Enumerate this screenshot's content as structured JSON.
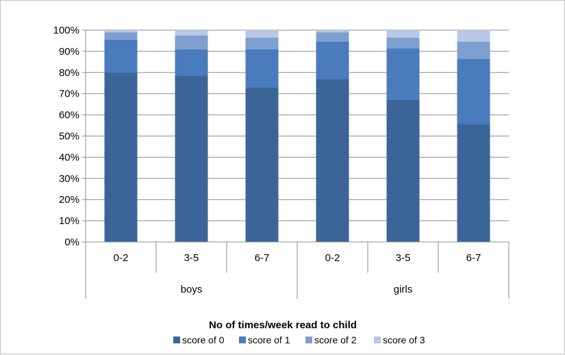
{
  "chart_data": {
    "type": "bar",
    "stacked": true,
    "percent": true,
    "groups": [
      {
        "label": "boys",
        "categories": [
          "0-2",
          "3-5",
          "6-7"
        ]
      },
      {
        "label": "girls",
        "categories": [
          "0-2",
          "3-5",
          "6-7"
        ]
      }
    ],
    "categories": [
      "0-2",
      "3-5",
      "6-7",
      "0-2",
      "3-5",
      "6-7"
    ],
    "series": [
      {
        "name": "score of 0",
        "color": "#3b6598",
        "values": [
          80,
          78.5,
          73,
          77,
          67,
          55.5
        ]
      },
      {
        "name": "score of 1",
        "color": "#4a7bbc",
        "values": [
          15.5,
          12.5,
          18,
          17.5,
          24.5,
          31
        ]
      },
      {
        "name": "score of 2",
        "color": "#7e9fcf",
        "values": [
          3.5,
          6.5,
          5.5,
          4.5,
          5,
          8
        ]
      },
      {
        "name": "score of 3",
        "color": "#b7c7e5",
        "values": [
          1,
          2.5,
          3.5,
          1,
          3.5,
          5.5
        ]
      }
    ],
    "y_ticks": [
      "0%",
      "10%",
      "20%",
      "30%",
      "40%",
      "50%",
      "60%",
      "70%",
      "80%",
      "90%",
      "100%"
    ],
    "ylim": [
      0,
      100
    ],
    "xlabel": "No of times/week read to child",
    "ylabel": "",
    "grid": true,
    "legend_position": "bottom"
  }
}
